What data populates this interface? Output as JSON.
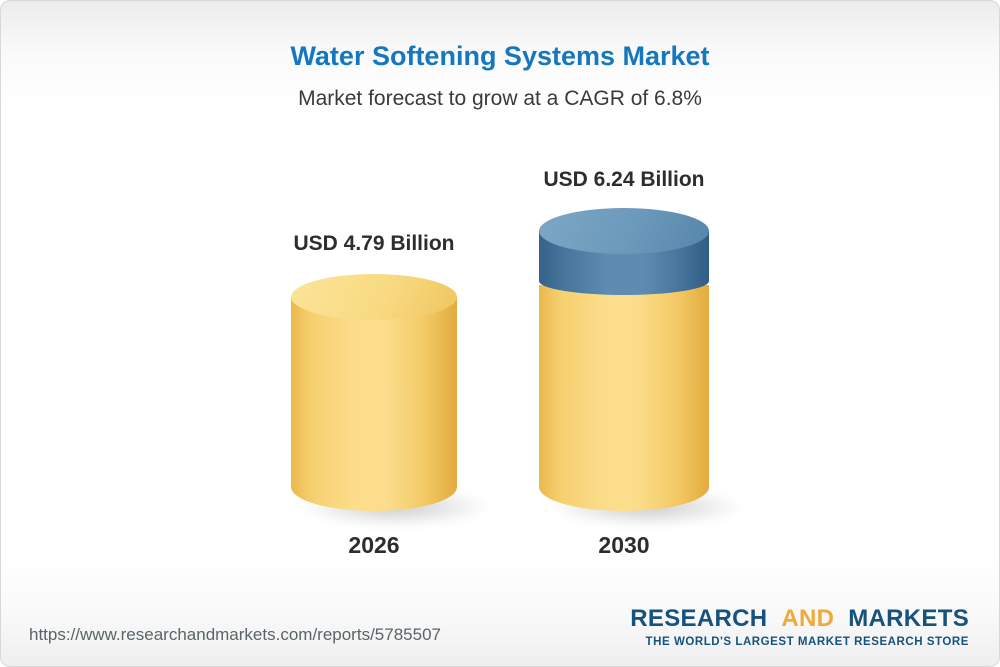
{
  "header": {
    "title": "Water Softening Systems Market",
    "subtitle": "Market forecast to grow at a CAGR of 6.8%"
  },
  "chart_data": {
    "type": "bar",
    "title": "Water Softening Systems Market",
    "subtitle": "Market forecast to grow at a CAGR of 6.8%",
    "unit": "USD Billion",
    "categories": [
      "2026",
      "2030"
    ],
    "values": [
      4.79,
      6.24
    ],
    "value_labels": [
      "USD 4.79 Billion",
      "USD 6.24 Billion"
    ],
    "cagr_percent": 6.8,
    "legend_position": "none",
    "grid": false,
    "colors": {
      "bar_base": "#f9d57a",
      "bar_growth": "#4d7ea8",
      "title": "#1577bd",
      "label_text": "#2d2d2d"
    }
  },
  "footer": {
    "url": "https://www.researchandmarkets.com/reports/5785507",
    "logo": {
      "word_research": "RESEARCH",
      "word_and": "AND",
      "word_markets": "MARKETS",
      "tagline": "THE WORLD'S LARGEST MARKET RESEARCH STORE"
    }
  }
}
